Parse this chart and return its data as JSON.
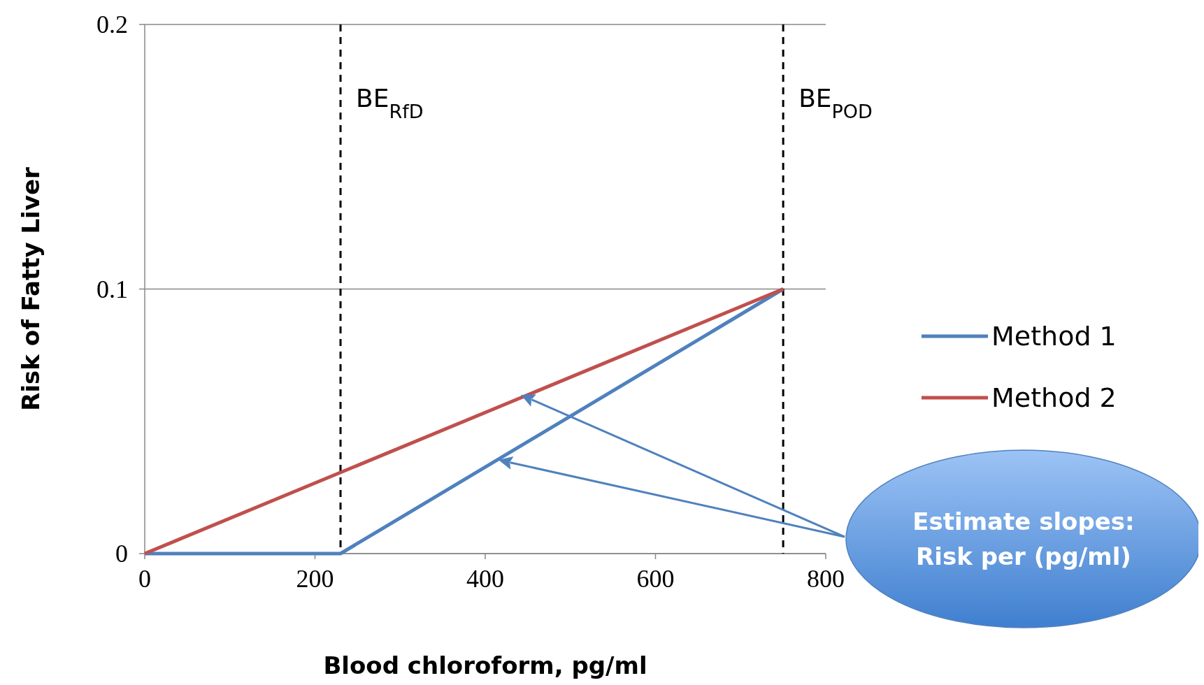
{
  "chart_data": {
    "type": "line",
    "xlabel": "Blood chloroform, pg/ml",
    "ylabel": "Risk of Fatty Liver",
    "xlim": [
      0,
      800
    ],
    "xticks": [
      0,
      200,
      400,
      600,
      800
    ],
    "ylim": [
      0,
      0.2
    ],
    "yticks": [
      0,
      0.1,
      0.2
    ],
    "grid": "y",
    "legend": "right",
    "line_style": "solid",
    "marker": "none",
    "series": [
      {
        "name": "Method 1",
        "color": "#4f81bd",
        "x": [
          0,
          230,
          750
        ],
        "values": [
          0,
          0,
          0.1
        ]
      },
      {
        "name": "Method 2",
        "color": "#c0504d",
        "x": [
          0,
          750
        ],
        "values": [
          0,
          0.1
        ]
      }
    ],
    "ref_lines": [
      {
        "axis": "x",
        "value": 230,
        "label": "BE$_{RfD}$",
        "color": "#000000",
        "line_style": "dashed"
      },
      {
        "axis": "x",
        "value": 750,
        "label": "BE$_{POD}$",
        "color": "#000000",
        "line_style": "dashed"
      }
    ],
    "annotations": [
      "Estimate slopes: Risk per (pg/ml)"
    ]
  }
}
